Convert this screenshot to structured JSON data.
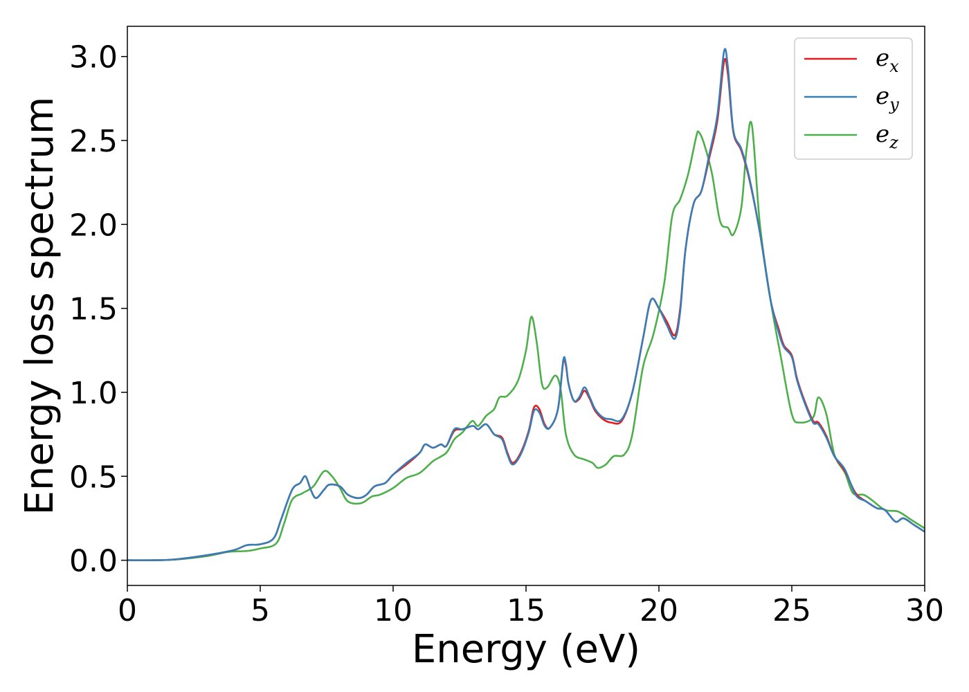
{
  "chart_data": {
    "type": "line",
    "xlabel": "Energy (eV)",
    "ylabel": "Energy loss spectrum",
    "xlim": [
      0,
      30
    ],
    "ylim": [
      -0.15,
      3.18
    ],
    "x_ticks": [
      0,
      5,
      10,
      15,
      20,
      25,
      30
    ],
    "x_tick_labels": [
      "0",
      "5",
      "10",
      "15",
      "20",
      "25",
      "30"
    ],
    "y_ticks": [
      0.0,
      0.5,
      1.0,
      1.5,
      2.0,
      2.5,
      3.0
    ],
    "y_tick_labels": [
      "0.0",
      "0.5",
      "1.0",
      "1.5",
      "2.0",
      "2.5",
      "3.0"
    ],
    "grid": false,
    "legend_position": "top-right",
    "series": [
      {
        "name": "e_x",
        "label_base": "e",
        "label_sub": "x",
        "color": "#e41a1c",
        "points": [
          [
            0,
            0
          ],
          [
            1,
            0
          ],
          [
            1.8,
            0.005
          ],
          [
            3,
            0.03
          ],
          [
            4,
            0.06
          ],
          [
            4.5,
            0.09
          ],
          [
            5,
            0.095
          ],
          [
            5.5,
            0.13
          ],
          [
            5.8,
            0.25
          ],
          [
            6.2,
            0.42
          ],
          [
            6.5,
            0.46
          ],
          [
            6.7,
            0.5
          ],
          [
            6.9,
            0.42
          ],
          [
            7.1,
            0.37
          ],
          [
            7.4,
            0.42
          ],
          [
            7.6,
            0.45
          ],
          [
            8,
            0.44
          ],
          [
            8.3,
            0.39
          ],
          [
            8.7,
            0.37
          ],
          [
            9,
            0.39
          ],
          [
            9.3,
            0.44
          ],
          [
            9.7,
            0.46
          ],
          [
            10,
            0.51
          ],
          [
            10.5,
            0.57
          ],
          [
            11,
            0.64
          ],
          [
            11.2,
            0.69
          ],
          [
            11.5,
            0.67
          ],
          [
            11.8,
            0.69
          ],
          [
            12,
            0.68
          ],
          [
            12.3,
            0.77
          ],
          [
            12.6,
            0.78
          ],
          [
            13,
            0.8
          ],
          [
            13.2,
            0.78
          ],
          [
            13.5,
            0.81
          ],
          [
            13.8,
            0.75
          ],
          [
            14.1,
            0.73
          ],
          [
            14.3,
            0.64
          ],
          [
            14.5,
            0.58
          ],
          [
            14.8,
            0.64
          ],
          [
            15.1,
            0.77
          ],
          [
            15.3,
            0.91
          ],
          [
            15.5,
            0.9
          ],
          [
            15.7,
            0.81
          ],
          [
            15.9,
            0.79
          ],
          [
            16.2,
            0.9
          ],
          [
            16.4,
            1.18
          ],
          [
            16.5,
            1.16
          ],
          [
            16.6,
            1.05
          ],
          [
            16.8,
            0.95
          ],
          [
            17,
            0.96
          ],
          [
            17.2,
            1.01
          ],
          [
            17.4,
            0.96
          ],
          [
            17.6,
            0.89
          ],
          [
            17.9,
            0.84
          ],
          [
            18.2,
            0.82
          ],
          [
            18.6,
            0.83
          ],
          [
            19,
            1.0
          ],
          [
            19.4,
            1.32
          ],
          [
            19.7,
            1.55
          ],
          [
            20,
            1.5
          ],
          [
            20.3,
            1.42
          ],
          [
            20.6,
            1.34
          ],
          [
            20.8,
            1.5
          ],
          [
            21,
            1.85
          ],
          [
            21.3,
            2.12
          ],
          [
            21.6,
            2.2
          ],
          [
            21.9,
            2.4
          ],
          [
            22.2,
            2.62
          ],
          [
            22.45,
            2.97
          ],
          [
            22.6,
            2.89
          ],
          [
            22.8,
            2.55
          ],
          [
            23.1,
            2.44
          ],
          [
            23.4,
            2.27
          ],
          [
            23.8,
            1.95
          ],
          [
            24.2,
            1.55
          ],
          [
            24.5,
            1.38
          ],
          [
            24.7,
            1.28
          ],
          [
            25,
            1.22
          ],
          [
            25.2,
            1.08
          ],
          [
            25.5,
            0.94
          ],
          [
            25.8,
            0.83
          ],
          [
            26,
            0.82
          ],
          [
            26.3,
            0.74
          ],
          [
            26.6,
            0.62
          ],
          [
            27,
            0.53
          ],
          [
            27.4,
            0.4
          ],
          [
            27.8,
            0.35
          ],
          [
            28.2,
            0.31
          ],
          [
            28.5,
            0.3
          ],
          [
            28.9,
            0.23
          ],
          [
            29.2,
            0.25
          ],
          [
            29.6,
            0.21
          ],
          [
            30,
            0.17
          ]
        ]
      },
      {
        "name": "e_y",
        "label_base": "e",
        "label_sub": "y",
        "color": "#377eb8",
        "points": [
          [
            0,
            0
          ],
          [
            1,
            0
          ],
          [
            1.8,
            0.005
          ],
          [
            3,
            0.03
          ],
          [
            4,
            0.06
          ],
          [
            4.5,
            0.09
          ],
          [
            5,
            0.095
          ],
          [
            5.5,
            0.13
          ],
          [
            5.8,
            0.25
          ],
          [
            6.2,
            0.42
          ],
          [
            6.5,
            0.46
          ],
          [
            6.7,
            0.5
          ],
          [
            6.9,
            0.42
          ],
          [
            7.1,
            0.37
          ],
          [
            7.4,
            0.42
          ],
          [
            7.6,
            0.45
          ],
          [
            8,
            0.44
          ],
          [
            8.3,
            0.39
          ],
          [
            8.7,
            0.37
          ],
          [
            9,
            0.39
          ],
          [
            9.3,
            0.44
          ],
          [
            9.7,
            0.46
          ],
          [
            10,
            0.51
          ],
          [
            10.5,
            0.58
          ],
          [
            11,
            0.64
          ],
          [
            11.2,
            0.69
          ],
          [
            11.5,
            0.67
          ],
          [
            11.8,
            0.69
          ],
          [
            12,
            0.68
          ],
          [
            12.3,
            0.78
          ],
          [
            12.6,
            0.78
          ],
          [
            13,
            0.8
          ],
          [
            13.2,
            0.78
          ],
          [
            13.5,
            0.81
          ],
          [
            13.8,
            0.75
          ],
          [
            14.1,
            0.72
          ],
          [
            14.3,
            0.63
          ],
          [
            14.5,
            0.57
          ],
          [
            14.8,
            0.63
          ],
          [
            15.1,
            0.76
          ],
          [
            15.3,
            0.89
          ],
          [
            15.5,
            0.88
          ],
          [
            15.7,
            0.8
          ],
          [
            15.9,
            0.79
          ],
          [
            16.2,
            0.9
          ],
          [
            16.4,
            1.19
          ],
          [
            16.5,
            1.17
          ],
          [
            16.6,
            1.05
          ],
          [
            16.8,
            0.95
          ],
          [
            17,
            0.97
          ],
          [
            17.2,
            1.03
          ],
          [
            17.4,
            0.97
          ],
          [
            17.6,
            0.9
          ],
          [
            17.9,
            0.85
          ],
          [
            18.2,
            0.84
          ],
          [
            18.6,
            0.84
          ],
          [
            19,
            1.0
          ],
          [
            19.4,
            1.32
          ],
          [
            19.7,
            1.55
          ],
          [
            20,
            1.5
          ],
          [
            20.3,
            1.4
          ],
          [
            20.6,
            1.32
          ],
          [
            20.8,
            1.48
          ],
          [
            21,
            1.85
          ],
          [
            21.3,
            2.12
          ],
          [
            21.6,
            2.2
          ],
          [
            21.9,
            2.42
          ],
          [
            22.2,
            2.65
          ],
          [
            22.45,
            3.03
          ],
          [
            22.6,
            2.93
          ],
          [
            22.8,
            2.56
          ],
          [
            23.1,
            2.45
          ],
          [
            23.4,
            2.28
          ],
          [
            23.8,
            1.95
          ],
          [
            24.2,
            1.55
          ],
          [
            24.5,
            1.36
          ],
          [
            24.7,
            1.27
          ],
          [
            25,
            1.21
          ],
          [
            25.2,
            1.07
          ],
          [
            25.5,
            0.93
          ],
          [
            25.8,
            0.82
          ],
          [
            26,
            0.81
          ],
          [
            26.3,
            0.73
          ],
          [
            26.6,
            0.62
          ],
          [
            27,
            0.54
          ],
          [
            27.4,
            0.39
          ],
          [
            27.8,
            0.35
          ],
          [
            28.2,
            0.31
          ],
          [
            28.5,
            0.3
          ],
          [
            28.9,
            0.23
          ],
          [
            29.2,
            0.25
          ],
          [
            29.6,
            0.21
          ],
          [
            30,
            0.17
          ]
        ]
      },
      {
        "name": "e_z",
        "label_base": "e",
        "label_sub": "z",
        "color": "#4daf4a",
        "points": [
          [
            0,
            0
          ],
          [
            1,
            0
          ],
          [
            1.8,
            0.004
          ],
          [
            3,
            0.025
          ],
          [
            3.8,
            0.05
          ],
          [
            4.5,
            0.055
          ],
          [
            5,
            0.07
          ],
          [
            5.6,
            0.1
          ],
          [
            5.9,
            0.22
          ],
          [
            6.2,
            0.36
          ],
          [
            6.6,
            0.4
          ],
          [
            7,
            0.44
          ],
          [
            7.4,
            0.53
          ],
          [
            7.7,
            0.5
          ],
          [
            8,
            0.43
          ],
          [
            8.3,
            0.35
          ],
          [
            8.8,
            0.34
          ],
          [
            9.2,
            0.38
          ],
          [
            9.5,
            0.39
          ],
          [
            10,
            0.43
          ],
          [
            10.5,
            0.49
          ],
          [
            11,
            0.52
          ],
          [
            11.5,
            0.59
          ],
          [
            12,
            0.64
          ],
          [
            12.3,
            0.72
          ],
          [
            12.6,
            0.76
          ],
          [
            12.8,
            0.8
          ],
          [
            13,
            0.83
          ],
          [
            13.2,
            0.8
          ],
          [
            13.5,
            0.86
          ],
          [
            13.8,
            0.9
          ],
          [
            14,
            0.97
          ],
          [
            14.3,
            0.98
          ],
          [
            14.7,
            1.07
          ],
          [
            15,
            1.25
          ],
          [
            15.2,
            1.45
          ],
          [
            15.4,
            1.3
          ],
          [
            15.6,
            1.05
          ],
          [
            15.8,
            1.03
          ],
          [
            16.1,
            1.1
          ],
          [
            16.3,
            1.02
          ],
          [
            16.5,
            0.75
          ],
          [
            16.8,
            0.63
          ],
          [
            17.2,
            0.6
          ],
          [
            17.5,
            0.58
          ],
          [
            17.7,
            0.55
          ],
          [
            18,
            0.57
          ],
          [
            18.3,
            0.62
          ],
          [
            18.7,
            0.63
          ],
          [
            19,
            0.75
          ],
          [
            19.4,
            1.15
          ],
          [
            19.8,
            1.35
          ],
          [
            20.2,
            1.65
          ],
          [
            20.5,
            2.05
          ],
          [
            20.8,
            2.15
          ],
          [
            21.1,
            2.3
          ],
          [
            21.4,
            2.52
          ],
          [
            21.5,
            2.55
          ],
          [
            21.7,
            2.48
          ],
          [
            22,
            2.3
          ],
          [
            22.3,
            2.02
          ],
          [
            22.6,
            1.98
          ],
          [
            22.8,
            1.94
          ],
          [
            23.1,
            2.1
          ],
          [
            23.3,
            2.45
          ],
          [
            23.5,
            2.59
          ],
          [
            23.8,
            2.0
          ],
          [
            24.2,
            1.55
          ],
          [
            24.6,
            1.2
          ],
          [
            25,
            0.87
          ],
          [
            25.3,
            0.82
          ],
          [
            25.8,
            0.85
          ],
          [
            26,
            0.97
          ],
          [
            26.3,
            0.87
          ],
          [
            26.6,
            0.63
          ],
          [
            27,
            0.52
          ],
          [
            27.3,
            0.4
          ],
          [
            27.7,
            0.39
          ],
          [
            28,
            0.36
          ],
          [
            28.5,
            0.3
          ],
          [
            29,
            0.29
          ],
          [
            29.5,
            0.24
          ],
          [
            30,
            0.19
          ]
        ]
      }
    ]
  }
}
